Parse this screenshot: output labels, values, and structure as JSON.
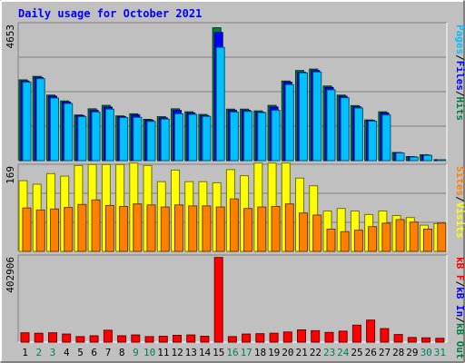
{
  "chart_data": [
    {
      "type": "bar",
      "title": "Daily usage for October 2021",
      "categories": [
        "1",
        "2",
        "3",
        "4",
        "5",
        "6",
        "7",
        "8",
        "9",
        "10",
        "11",
        "12",
        "13",
        "14",
        "15",
        "16",
        "17",
        "18",
        "19",
        "20",
        "21",
        "22",
        "23",
        "24",
        "25",
        "26",
        "27",
        "28",
        "29",
        "30",
        "31"
      ],
      "weekend_days": [
        2,
        3,
        9,
        10,
        16,
        17,
        23,
        24,
        30,
        31
      ],
      "ymax_label": "4653",
      "ylim": [
        0,
        4653
      ],
      "series": [
        {
          "name": "Hits",
          "color": "#008040",
          "values": [
            2760,
            2880,
            2240,
            2040,
            1560,
            1770,
            1890,
            1530,
            1600,
            1410,
            1500,
            1770,
            1670,
            1580,
            4540,
            1760,
            1760,
            1700,
            1890,
            2720,
            3080,
            3130,
            2550,
            2240,
            1880,
            1390,
            1670,
            280,
            140,
            200,
            20
          ]
        },
        {
          "name": "Files",
          "color": "#0000ff",
          "values": [
            2720,
            2840,
            2200,
            2000,
            1540,
            1720,
            1830,
            1500,
            1560,
            1380,
            1460,
            1720,
            1630,
            1540,
            4380,
            1720,
            1720,
            1660,
            1830,
            2680,
            3020,
            3080,
            2500,
            2200,
            1840,
            1370,
            1630,
            270,
            130,
            190,
            15
          ]
        },
        {
          "name": "Pages",
          "color": "#00c0ff",
          "values": [
            2680,
            2800,
            2140,
            1950,
            1500,
            1660,
            1760,
            1470,
            1480,
            1340,
            1420,
            1600,
            1580,
            1510,
            3870,
            1660,
            1680,
            1640,
            1720,
            2600,
            3000,
            3030,
            2420,
            2150,
            1800,
            1350,
            1560,
            260,
            120,
            180,
            10
          ]
        }
      ],
      "legend": [
        "Pages",
        "/",
        "Files",
        "/",
        "Hits"
      ],
      "legend_colors": [
        "#00c0ff",
        "#000000",
        "#0000ff",
        "#000000",
        "#008040"
      ]
    },
    {
      "type": "bar",
      "ymax_label": "169",
      "ylim": [
        0,
        169
      ],
      "series": [
        {
          "name": "Visits",
          "color": "#ffff00",
          "values": [
            140,
            133,
            154,
            149,
            170,
            172,
            172,
            172,
            175,
            170,
            138,
            161,
            138,
            138,
            136,
            162,
            150,
            175,
            175,
            175,
            145,
            130,
            80,
            85,
            80,
            73,
            80,
            71,
            67,
            52,
            55
          ]
        },
        {
          "name": "Sites",
          "color": "#ff8000",
          "values": [
            86,
            82,
            84,
            87,
            93,
            102,
            91,
            89,
            94,
            92,
            88,
            92,
            90,
            90,
            88,
            104,
            85,
            88,
            89,
            94,
            76,
            72,
            44,
            39,
            42,
            49,
            56,
            63,
            58,
            44,
            56
          ]
        }
      ],
      "legend": [
        "Sites",
        "/",
        "Visits"
      ],
      "legend_colors": [
        "#ff8000",
        "#000000",
        "#ffff00"
      ]
    },
    {
      "type": "bar",
      "ymax_label": "402906",
      "ylim": [
        0,
        402906
      ],
      "series": [
        {
          "name": "kB F",
          "color": "#ff0000",
          "values": [
            44000,
            42000,
            44000,
            38000,
            26000,
            30000,
            56000,
            30000,
            34000,
            26000,
            28000,
            32000,
            34000,
            28000,
            400000,
            26000,
            38000,
            40000,
            42000,
            48000,
            58000,
            54000,
            46000,
            52000,
            80000,
            104000,
            64000,
            36000,
            22000,
            20000,
            18000
          ]
        }
      ],
      "legend": [
        "kB F",
        "/",
        "kB In",
        "/",
        "kB Out"
      ],
      "legend_colors": [
        "#ff0000",
        "#000000",
        "#0000ff",
        "#000000",
        "#008040"
      ]
    }
  ]
}
